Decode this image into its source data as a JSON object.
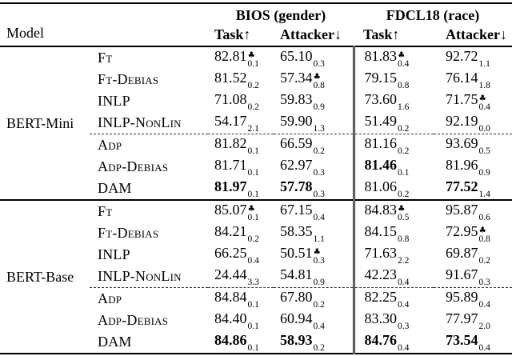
{
  "table": {
    "club_symbol": "♣",
    "header": {
      "model_label": "Model",
      "col_groups": [
        {
          "label": "BIOS (gender)"
        },
        {
          "label": "FDCL18 (race)"
        }
      ],
      "sub_cols": [
        "Task↑",
        "Attacker↓",
        "Task↑",
        "Attacker↓"
      ]
    },
    "groups": [
      {
        "model": "BERT-Mini",
        "subgroups": [
          {
            "rows": [
              {
                "method": "Ft",
                "cells": [
                  {
                    "v": "82.81",
                    "sub": "0.1",
                    "club": true
                  },
                  {
                    "v": "65.10",
                    "sub": "0.3"
                  },
                  {
                    "v": "81.83",
                    "sub": "0.4",
                    "club": true
                  },
                  {
                    "v": "92.72",
                    "sub": "1.1"
                  }
                ]
              },
              {
                "method": "Ft-Debias",
                "cells": [
                  {
                    "v": "81.52",
                    "sub": "0.2"
                  },
                  {
                    "v": "57.34",
                    "sub": "0.8",
                    "club": true
                  },
                  {
                    "v": "79.15",
                    "sub": "0.8"
                  },
                  {
                    "v": "76.14",
                    "sub": "1.8"
                  }
                ]
              },
              {
                "method": "INLP",
                "cells": [
                  {
                    "v": "71.08",
                    "sub": "0.2"
                  },
                  {
                    "v": "59.83",
                    "sub": "0.9"
                  },
                  {
                    "v": "73.60",
                    "sub": "1.6"
                  },
                  {
                    "v": "71.75",
                    "sub": "0.4",
                    "club": true
                  }
                ]
              },
              {
                "method": "INLP-NonLin",
                "cells": [
                  {
                    "v": "54.17",
                    "sub": "2.1"
                  },
                  {
                    "v": "59.90",
                    "sub": "1.3"
                  },
                  {
                    "v": "51.49",
                    "sub": "0.2"
                  },
                  {
                    "v": "92.19",
                    "sub": "0.0"
                  }
                ]
              }
            ]
          },
          {
            "rows": [
              {
                "method": "Adp",
                "cells": [
                  {
                    "v": "81.82",
                    "sub": "0.1"
                  },
                  {
                    "v": "66.59",
                    "sub": "0.2"
                  },
                  {
                    "v": "81.16",
                    "sub": "0.2"
                  },
                  {
                    "v": "93.69",
                    "sub": "0.5"
                  }
                ]
              },
              {
                "method": "Adp-Debias",
                "cells": [
                  {
                    "v": "81.71",
                    "sub": "0.1"
                  },
                  {
                    "v": "62.97",
                    "sub": "0.3"
                  },
                  {
                    "v": "81.46",
                    "sub": "0.1",
                    "bold": true
                  },
                  {
                    "v": "81.96",
                    "sub": "0.9"
                  }
                ]
              },
              {
                "method": "DAM",
                "cells": [
                  {
                    "v": "81.97",
                    "sub": "0.1",
                    "bold": true
                  },
                  {
                    "v": "57.78",
                    "sub": "0.3",
                    "bold": true
                  },
                  {
                    "v": "81.06",
                    "sub": "0.2"
                  },
                  {
                    "v": "77.52",
                    "sub": "1.4",
                    "bold": true
                  }
                ]
              }
            ]
          }
        ]
      },
      {
        "model": "BERT-Base",
        "subgroups": [
          {
            "rows": [
              {
                "method": "Ft",
                "cells": [
                  {
                    "v": "85.07",
                    "sub": "0.1",
                    "club": true
                  },
                  {
                    "v": "67.15",
                    "sub": "0.4"
                  },
                  {
                    "v": "84.83",
                    "sub": "0.5",
                    "club": true
                  },
                  {
                    "v": "95.87",
                    "sub": "0.6"
                  }
                ]
              },
              {
                "method": "Ft-Debias",
                "cells": [
                  {
                    "v": "84.21",
                    "sub": "0.2"
                  },
                  {
                    "v": "58.35",
                    "sub": "1.1"
                  },
                  {
                    "v": "84.15",
                    "sub": "0.8"
                  },
                  {
                    "v": "72.95",
                    "sub": "0.8",
                    "club": true
                  }
                ]
              },
              {
                "method": "INLP",
                "cells": [
                  {
                    "v": "66.25",
                    "sub": "0.4"
                  },
                  {
                    "v": "50.51",
                    "sub": "0.3",
                    "club": true
                  },
                  {
                    "v": "71.63",
                    "sub": "2.2"
                  },
                  {
                    "v": "69.87",
                    "sub": "0.2"
                  }
                ]
              },
              {
                "method": "INLP-NonLin",
                "cells": [
                  {
                    "v": "24.44",
                    "sub": "3.3"
                  },
                  {
                    "v": "54.81",
                    "sub": "0.9"
                  },
                  {
                    "v": "42.23",
                    "sub": "0.4"
                  },
                  {
                    "v": "91.67",
                    "sub": "0.3"
                  }
                ]
              }
            ]
          },
          {
            "rows": [
              {
                "method": "Adp",
                "cells": [
                  {
                    "v": "84.84",
                    "sub": "0.1"
                  },
                  {
                    "v": "67.80",
                    "sub": "0.2"
                  },
                  {
                    "v": "82.25",
                    "sub": "0.4"
                  },
                  {
                    "v": "95.89",
                    "sub": "0.4"
                  }
                ]
              },
              {
                "method": "Adp-Debias",
                "cells": [
                  {
                    "v": "84.40",
                    "sub": "0.1"
                  },
                  {
                    "v": "60.94",
                    "sub": "0.4"
                  },
                  {
                    "v": "83.30",
                    "sub": "0.3"
                  },
                  {
                    "v": "77.97",
                    "sub": "2.0"
                  }
                ]
              },
              {
                "method": "DAM",
                "cells": [
                  {
                    "v": "84.86",
                    "sub": "0.1",
                    "bold": true
                  },
                  {
                    "v": "58.93",
                    "sub": "0.2",
                    "bold": true
                  },
                  {
                    "v": "84.76",
                    "sub": "0.4",
                    "bold": true
                  },
                  {
                    "v": "73.54",
                    "sub": "0.4",
                    "bold": true
                  }
                ]
              }
            ]
          }
        ]
      }
    ]
  }
}
